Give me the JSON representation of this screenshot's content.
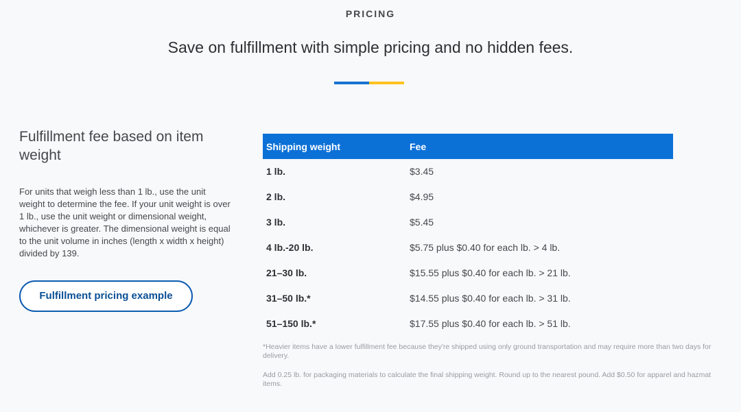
{
  "header": {
    "eyebrow": "PRICING",
    "headline": "Save on fulfillment with simple pricing and no hidden fees.",
    "divider_colors": [
      "#1773d0",
      "#ffc220"
    ]
  },
  "left_panel": {
    "title": "Fulfillment fee based on item weight",
    "body": "For units that weigh less than 1 lb., use the unit weight to determine the fee. If your unit weight is over 1 lb., use the unit weight or dimensional weight, whichever is greater. The dimensional weight is equal to the unit volume in inches (length x width x height) divided by 139.",
    "button_label": "Fulfillment pricing example"
  },
  "pricing_table": {
    "columns": [
      "Shipping weight",
      "Fee"
    ],
    "rows": [
      {
        "weight": "1 lb.",
        "fee": "$3.45"
      },
      {
        "weight": "2 lb.",
        "fee": "$4.95"
      },
      {
        "weight": "3 lb.",
        "fee": "$5.45"
      },
      {
        "weight": "4 lb.-20 lb.",
        "fee": "$5.75 plus $0.40 for each lb. > 4 lb."
      },
      {
        "weight": "21–30 lb.",
        "fee": "$15.55 plus $0.40 for each lb. > 21 lb."
      },
      {
        "weight": "31–50 lb.*",
        "fee": "$14.55 plus $0.40 for each lb. > 31 lb."
      },
      {
        "weight": "51–150 lb.*",
        "fee": "$17.55 plus $0.40 for each lb. > 51 lb."
      }
    ],
    "header_color": "#0c71d7"
  },
  "footnotes": [
    "*Heavier items have a lower fulfillment fee because they're shipped using only ground transportation and may require more than two days for delivery.",
    "Add 0.25 lb. for packaging materials to calculate the final shipping weight. Round up to the nearest pound. Add $0.50 for apparel and hazmat items."
  ]
}
